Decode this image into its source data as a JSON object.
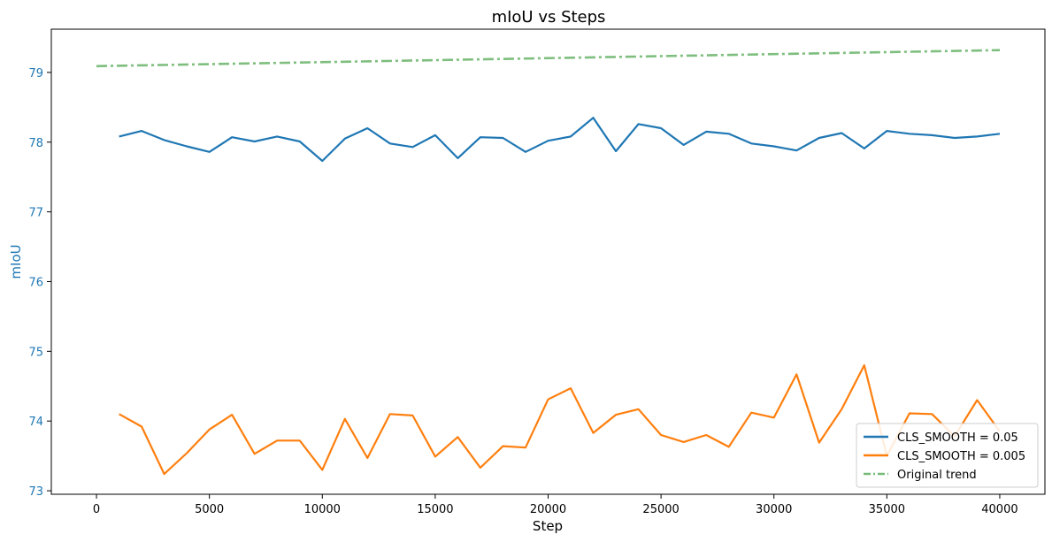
{
  "chart_data": {
    "type": "line",
    "title": "mIoU vs Steps",
    "xlabel": "Step",
    "ylabel": "mIoU",
    "xlim": [
      -2000,
      42000
    ],
    "ylim": [
      72.95,
      79.62
    ],
    "x_ticks": [
      0,
      5000,
      10000,
      15000,
      20000,
      25000,
      30000,
      35000,
      40000
    ],
    "y_ticks": [
      73,
      74,
      75,
      76,
      77,
      78,
      79
    ],
    "grid": false,
    "legend_position": "bottom-right",
    "colors": {
      "ylabel": "#1f77b4",
      "ytick": "#1f77b4",
      "axis": "#000000"
    },
    "series": [
      {
        "name": "CLS_SMOOTH = 0.05",
        "color": "#1f77b4",
        "style": "solid",
        "x": [
          1000,
          2000,
          3000,
          4000,
          5000,
          6000,
          7000,
          8000,
          9000,
          10000,
          11000,
          12000,
          13000,
          14000,
          15000,
          16000,
          17000,
          18000,
          19000,
          20000,
          21000,
          22000,
          23000,
          24000,
          25000,
          26000,
          27000,
          28000,
          29000,
          30000,
          31000,
          32000,
          33000,
          34000,
          35000,
          36000,
          37000,
          38000,
          39000,
          40000
        ],
        "y": [
          78.08,
          78.16,
          78.03,
          77.94,
          77.86,
          78.07,
          78.01,
          78.08,
          78.01,
          77.73,
          78.05,
          78.2,
          77.98,
          77.93,
          78.1,
          77.77,
          78.07,
          78.06,
          77.86,
          78.02,
          78.08,
          78.35,
          77.87,
          78.26,
          78.2,
          77.96,
          78.15,
          78.12,
          77.98,
          77.94,
          77.88,
          78.06,
          78.13,
          77.91,
          78.16,
          78.12,
          78.1,
          78.06,
          78.08,
          78.12
        ]
      },
      {
        "name": "CLS_SMOOTH = 0.005",
        "color": "#ff7f0e",
        "style": "solid",
        "x": [
          1000,
          2000,
          3000,
          4000,
          5000,
          6000,
          7000,
          8000,
          9000,
          10000,
          11000,
          12000,
          13000,
          14000,
          15000,
          16000,
          17000,
          18000,
          19000,
          20000,
          21000,
          22000,
          23000,
          24000,
          25000,
          26000,
          27000,
          28000,
          29000,
          30000,
          31000,
          32000,
          33000,
          34000,
          35000,
          36000,
          37000,
          38000,
          39000,
          40000
        ],
        "y": [
          74.1,
          73.92,
          73.24,
          73.54,
          73.88,
          74.09,
          73.53,
          73.72,
          73.72,
          73.3,
          74.03,
          73.47,
          74.1,
          74.08,
          73.49,
          73.77,
          73.33,
          73.64,
          73.62,
          74.31,
          74.47,
          73.83,
          74.09,
          74.17,
          73.8,
          73.7,
          73.8,
          73.63,
          74.12,
          74.05,
          74.67,
          73.69,
          74.17,
          74.8,
          73.5,
          74.11,
          74.1,
          73.78,
          74.3,
          73.85
        ]
      },
      {
        "name": "Original trend",
        "color": "#77bb77",
        "style": "dashdot",
        "x": [
          0,
          40000
        ],
        "y": [
          79.09,
          79.32
        ]
      }
    ]
  }
}
